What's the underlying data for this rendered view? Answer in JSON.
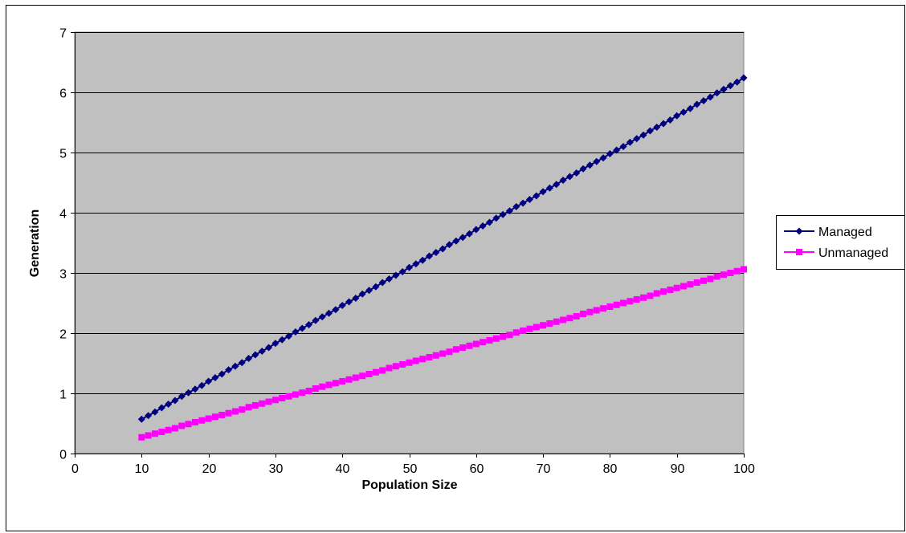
{
  "chart_data": {
    "type": "line",
    "title": "",
    "xlabel": "Population Size",
    "ylabel": "Generation",
    "xlim": [
      0,
      100
    ],
    "ylim": [
      0,
      7
    ],
    "xticks": [
      0,
      10,
      20,
      30,
      40,
      50,
      60,
      70,
      80,
      90,
      100
    ],
    "yticks": [
      0,
      1,
      2,
      3,
      4,
      5,
      6,
      7
    ],
    "grid": "horizontal",
    "legend": "right",
    "plot_background": "#c0c0c0",
    "x": [
      10,
      11,
      12,
      13,
      14,
      15,
      16,
      17,
      18,
      19,
      20,
      21,
      22,
      23,
      24,
      25,
      26,
      27,
      28,
      29,
      30,
      31,
      32,
      33,
      34,
      35,
      36,
      37,
      38,
      39,
      40,
      41,
      42,
      43,
      44,
      45,
      46,
      47,
      48,
      49,
      50,
      51,
      52,
      53,
      54,
      55,
      56,
      57,
      58,
      59,
      60,
      61,
      62,
      63,
      64,
      65,
      66,
      67,
      68,
      69,
      70,
      71,
      72,
      73,
      74,
      75,
      76,
      77,
      78,
      79,
      80,
      81,
      82,
      83,
      84,
      85,
      86,
      87,
      88,
      89,
      90,
      91,
      92,
      93,
      94,
      95,
      96,
      97,
      98,
      99,
      100
    ],
    "series": [
      {
        "name": "Managed",
        "color": "#000080",
        "marker": "diamond",
        "values": [
          0.57,
          0.63,
          0.69,
          0.76,
          0.82,
          0.88,
          0.95,
          1.01,
          1.07,
          1.13,
          1.2,
          1.26,
          1.32,
          1.39,
          1.45,
          1.51,
          1.58,
          1.64,
          1.7,
          1.76,
          1.83,
          1.89,
          1.95,
          2.02,
          2.08,
          2.14,
          2.21,
          2.27,
          2.33,
          2.39,
          2.46,
          2.52,
          2.58,
          2.65,
          2.71,
          2.77,
          2.84,
          2.9,
          2.96,
          3.02,
          3.09,
          3.15,
          3.21,
          3.28,
          3.34,
          3.4,
          3.47,
          3.53,
          3.59,
          3.65,
          3.72,
          3.78,
          3.84,
          3.91,
          3.97,
          4.03,
          4.1,
          4.16,
          4.22,
          4.28,
          4.35,
          4.41,
          4.47,
          4.54,
          4.6,
          4.66,
          4.73,
          4.79,
          4.85,
          4.91,
          4.98,
          5.04,
          5.1,
          5.17,
          5.23,
          5.29,
          5.36,
          5.42,
          5.48,
          5.54,
          5.61,
          5.67,
          5.73,
          5.8,
          5.86,
          5.92,
          5.99,
          6.05,
          6.11,
          6.17,
          6.24
        ]
      },
      {
        "name": "Unmanaged",
        "color": "#ff00ff",
        "marker": "square",
        "values": [
          0.27,
          0.3,
          0.33,
          0.36,
          0.39,
          0.42,
          0.46,
          0.49,
          0.52,
          0.55,
          0.58,
          0.61,
          0.64,
          0.67,
          0.7,
          0.73,
          0.77,
          0.8,
          0.83,
          0.86,
          0.89,
          0.92,
          0.95,
          0.98,
          1.01,
          1.04,
          1.08,
          1.11,
          1.14,
          1.17,
          1.2,
          1.23,
          1.26,
          1.29,
          1.32,
          1.35,
          1.38,
          1.42,
          1.45,
          1.48,
          1.51,
          1.54,
          1.57,
          1.6,
          1.63,
          1.66,
          1.69,
          1.73,
          1.76,
          1.79,
          1.82,
          1.85,
          1.88,
          1.91,
          1.94,
          1.97,
          2.01,
          2.04,
          2.07,
          2.1,
          2.13,
          2.16,
          2.19,
          2.22,
          2.25,
          2.28,
          2.32,
          2.35,
          2.38,
          2.41,
          2.44,
          2.47,
          2.5,
          2.53,
          2.56,
          2.59,
          2.62,
          2.66,
          2.69,
          2.72,
          2.75,
          2.78,
          2.81,
          2.84,
          2.87,
          2.9,
          2.94,
          2.97,
          3.0,
          3.03,
          3.06
        ]
      }
    ]
  }
}
